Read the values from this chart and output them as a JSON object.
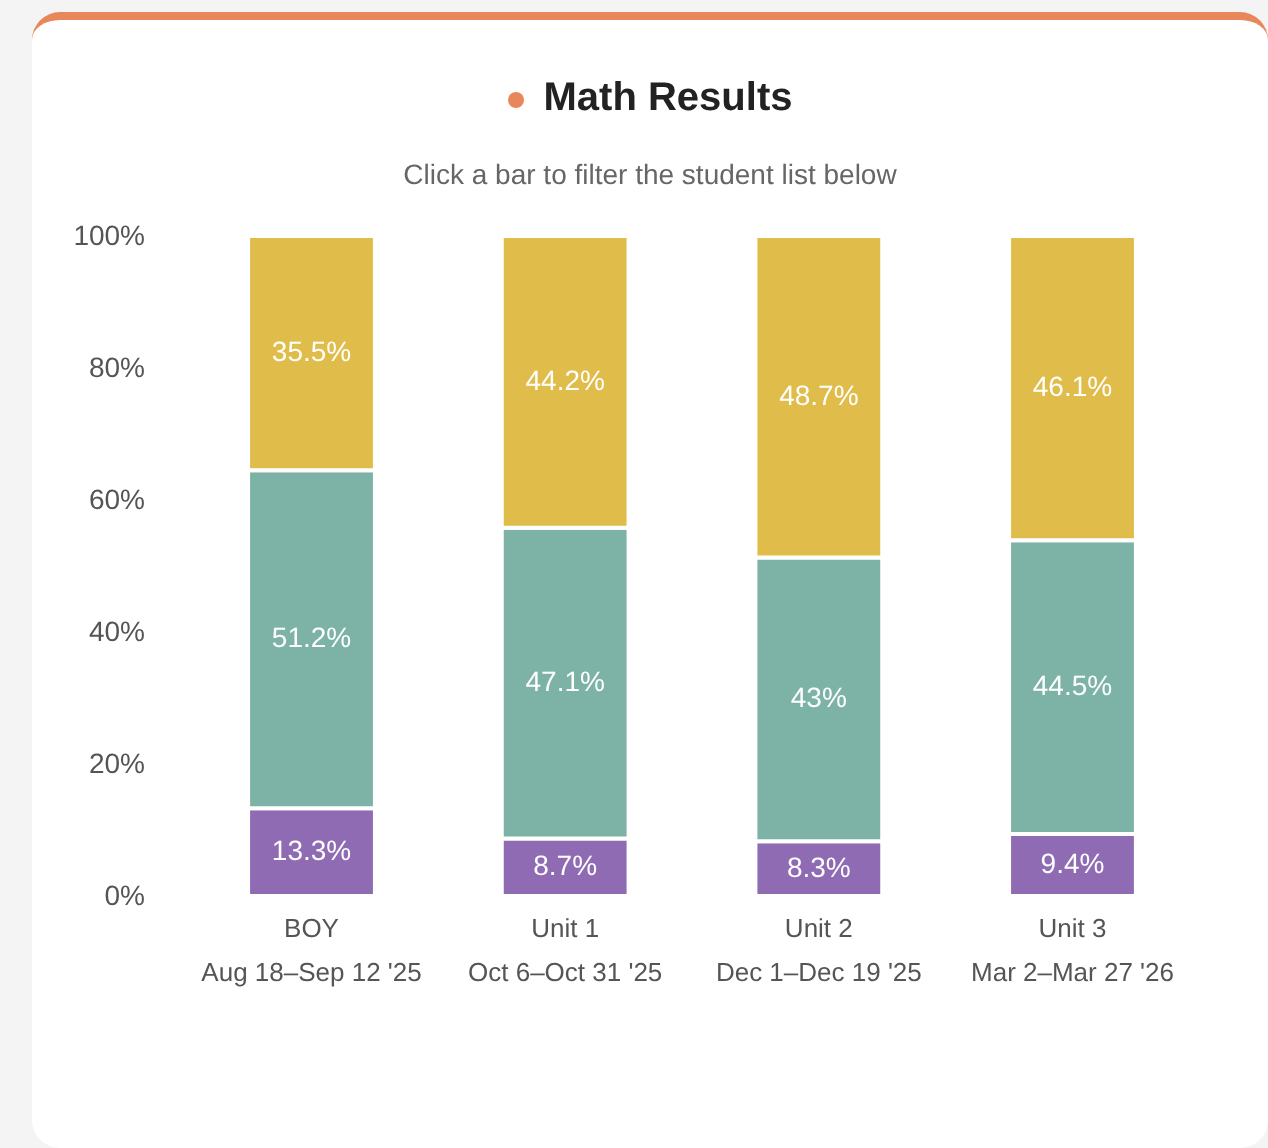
{
  "chart_data": {
    "type": "bar",
    "title": "Math Results",
    "subtitle": "Click a bar to filter the student list below",
    "categories": [
      "BOY\nAug 18–Sep 12 '25",
      "Unit 1\nOct 6–Oct 31 '25",
      "Unit 2\nDec 1–Dec 19 '25",
      "Unit 3\nMar 2–Mar 27 '26"
    ],
    "stacked": true,
    "series": [
      {
        "color": "#8f6bb3",
        "values": [
          13.3,
          8.7,
          8.3,
          9.4
        ],
        "value_labels": [
          "13.3%",
          "8.7%",
          "8.3%",
          "9.4%"
        ]
      },
      {
        "color": "#7db3a6",
        "values": [
          51.2,
          47.1,
          43,
          44.5
        ],
        "value_labels": [
          "51.2%",
          "47.1%",
          "43%",
          "44.5%"
        ]
      },
      {
        "color": "#e0bd4a",
        "values": [
          35.5,
          44.2,
          48.7,
          46.1
        ],
        "value_labels": [
          "35.5%",
          "44.2%",
          "48.7%",
          "46.1%"
        ]
      }
    ],
    "ylim": [
      0,
      100
    ],
    "yticks": [
      {
        "value": 0,
        "label": "0%"
      },
      {
        "value": 20,
        "label": "20%"
      },
      {
        "value": 40,
        "label": "40%"
      },
      {
        "value": 60,
        "label": "60%"
      },
      {
        "value": 80,
        "label": "80%"
      },
      {
        "value": 100,
        "label": "100%"
      }
    ]
  }
}
